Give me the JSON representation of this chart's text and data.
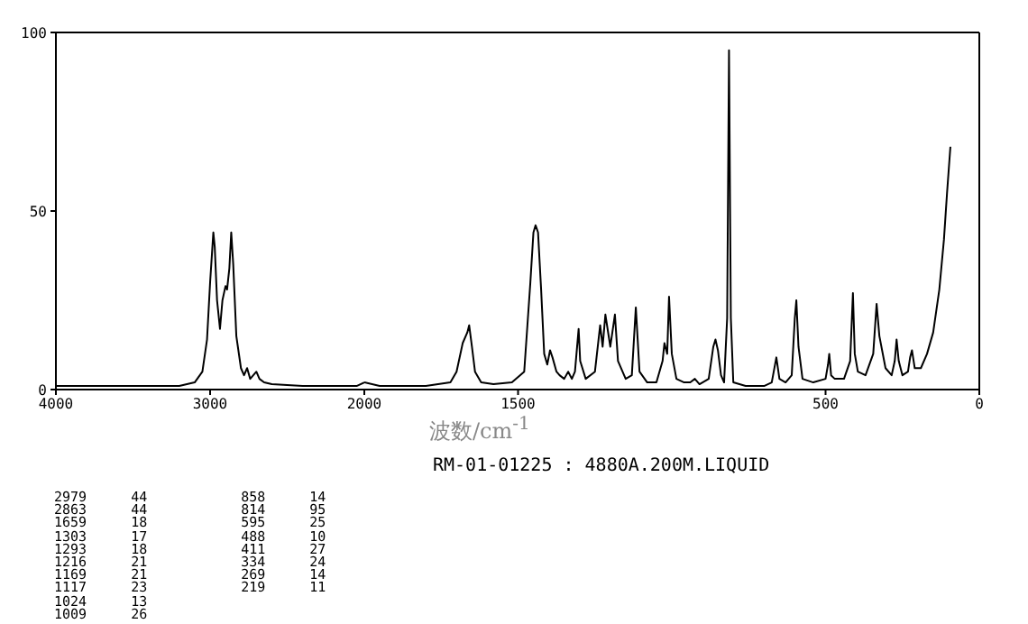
{
  "chart_data": [
    {
      "type": "line",
      "xlim": [
        4000,
        2000
      ],
      "xticks": [
        4000,
        3000,
        2000
      ],
      "ylim": [
        0,
        100
      ],
      "yticks": [
        0,
        50,
        100
      ],
      "x": [
        4000,
        3500,
        3200,
        3100,
        3050,
        3020,
        3000,
        2985,
        2979,
        2970,
        2955,
        2936,
        2920,
        2900,
        2890,
        2875,
        2863,
        2850,
        2830,
        2800,
        2780,
        2760,
        2740,
        2700,
        2680,
        2650,
        2600,
        2400,
        2200,
        2050,
        2000
      ],
      "series": [
        {
          "color": "#000000",
          "values": [
            1,
            1,
            1,
            2,
            5,
            14,
            30,
            40,
            44,
            40,
            25,
            17,
            25,
            29,
            28,
            34,
            44,
            35,
            15,
            6,
            4,
            6,
            3,
            5,
            3,
            2,
            1.5,
            1,
            1,
            1,
            2
          ]
        }
      ]
    },
    {
      "type": "line",
      "xlabel": "波数/cm$^{-1}$",
      "xlim": [
        2000,
        0
      ],
      "xticks": [
        1500,
        500,
        0
      ],
      "ylim": [
        0,
        100
      ],
      "tick_labels": "x",
      "x": [
        2000,
        1950,
        1800,
        1720,
        1700,
        1680,
        1665,
        1659,
        1650,
        1640,
        1620,
        1580,
        1520,
        1480,
        1460,
        1450,
        1443,
        1435,
        1425,
        1415,
        1405,
        1396,
        1388,
        1375,
        1365,
        1350,
        1337,
        1325,
        1315,
        1303,
        1298,
        1280,
        1250,
        1233,
        1225,
        1216,
        1200,
        1185,
        1175,
        1150,
        1130,
        1117,
        1105,
        1080,
        1050,
        1030,
        1024,
        1015,
        1009,
        1000,
        985,
        960,
        940,
        925,
        910,
        880,
        865,
        858,
        850,
        840,
        830,
        820,
        814,
        808,
        800,
        760,
        700,
        675,
        660,
        650,
        630,
        610,
        600,
        595,
        588,
        575,
        540,
        500,
        492,
        488,
        482,
        470,
        440,
        420,
        411,
        405,
        395,
        370,
        345,
        334,
        325,
        305,
        285,
        275,
        269,
        262,
        250,
        232,
        225,
        219,
        210,
        190,
        170,
        150,
        130,
        115,
        105,
        94
      ],
      "series": [
        {
          "color": "#000000",
          "values": [
            2,
            1,
            1,
            2,
            5,
            13,
            16,
            18,
            12,
            5,
            2,
            1.5,
            2,
            5,
            30,
            44,
            46,
            44,
            28,
            10,
            7,
            11,
            9,
            5,
            4,
            3,
            5,
            3,
            5,
            17,
            8,
            3,
            5,
            18,
            12,
            21,
            12,
            21,
            8,
            3,
            4,
            23,
            5,
            2,
            2,
            8,
            13,
            10,
            26,
            10,
            3,
            2,
            2,
            3,
            1.5,
            3,
            12,
            14,
            11,
            4,
            2,
            20,
            95,
            20,
            2,
            1,
            1,
            2,
            9,
            3,
            2,
            4,
            20,
            25,
            12,
            3,
            2,
            3,
            7,
            10,
            4,
            3,
            3,
            8,
            27,
            10,
            5,
            4,
            10,
            24,
            15,
            6,
            4,
            8,
            14,
            8,
            4,
            5,
            9,
            11,
            6,
            6,
            10,
            16,
            28,
            42,
            55,
            68
          ]
        }
      ],
      "annotations": [
        "RM-01-01225 : 4880A.200M.LIQUID",
        "2979 44",
        "2863 44",
        "1659 18",
        "1303 17",
        "1293 18",
        "1216 21",
        "1169 21",
        "1117 23",
        "1024 13",
        "1009 26",
        "858 14",
        "814 95",
        "595 25",
        "488 10",
        "411 27",
        "334 24",
        "269 14",
        "219 11"
      ]
    }
  ]
}
